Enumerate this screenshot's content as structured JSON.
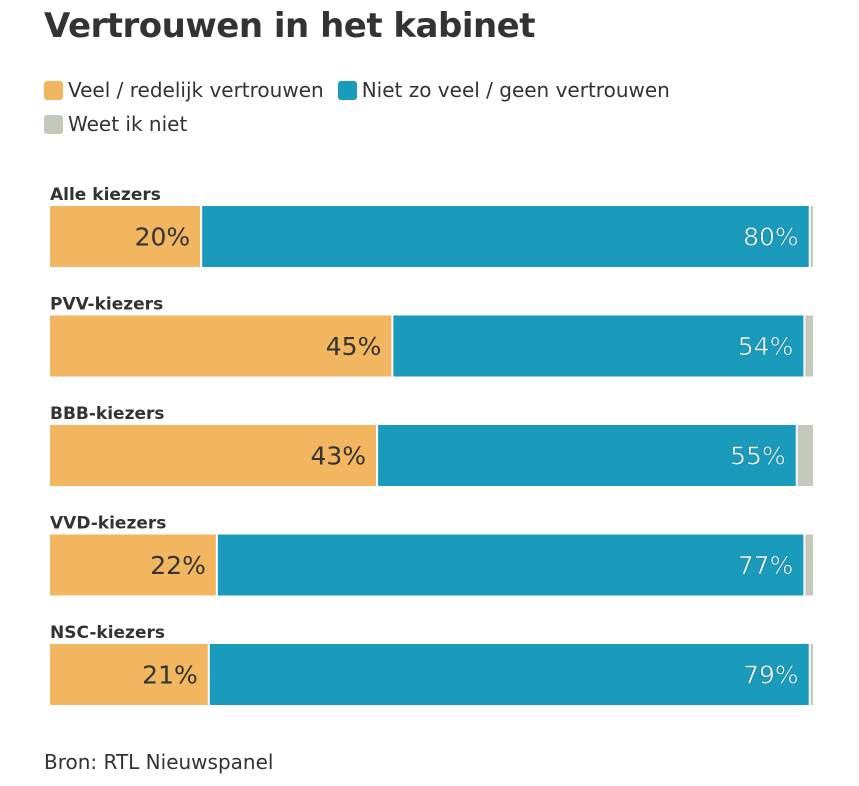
{
  "colors": {
    "positive": "#f2b661",
    "negative": "#1a9bbb",
    "unknown": "#c5c9bc",
    "text": "#333333",
    "white": "#ffffff"
  },
  "legend": {
    "items": [
      {
        "label": "Veel / redelijk vertrouwen",
        "color": "#f2b661",
        "icon": "orange-square-icon"
      },
      {
        "label": "Niet zo veel / geen vertrouwen",
        "color": "#1a9bbb",
        "icon": "blue-square-icon"
      },
      {
        "label": "Weet ik niet",
        "color": "#c5c9bc",
        "icon": "grey-square-icon"
      }
    ]
  },
  "chart_data": {
    "type": "bar",
    "orientation": "horizontal",
    "stacked": true,
    "normalized": true,
    "title": "Vertrouwen in het kabinet",
    "categories": [
      "Alle kiezers",
      "PVV-kiezers",
      "BBB-kiezers",
      "VVD-kiezers",
      "NSC-kiezers"
    ],
    "series": [
      {
        "name": "Veel / redelijk vertrouwen",
        "values": [
          20,
          45,
          43,
          22,
          21
        ],
        "labels": [
          "20%",
          "45%",
          "43%",
          "22%",
          "21%"
        ]
      },
      {
        "name": "Niet zo veel / geen vertrouwen",
        "values": [
          80,
          54,
          55,
          77,
          79
        ],
        "labels": [
          "80%",
          "54%",
          "55%",
          "77%",
          "79%"
        ]
      },
      {
        "name": "Weet ik niet",
        "values": [
          0.3,
          1,
          2,
          1,
          0.3
        ]
      }
    ],
    "xlim": [
      0,
      100
    ],
    "xlabel": "",
    "ylabel": "",
    "grid": false,
    "legend_position": "top"
  },
  "source": "Bron: RTL Nieuwspanel"
}
